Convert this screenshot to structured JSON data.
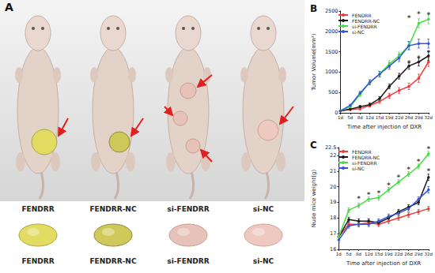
{
  "panel_a": {
    "label": "A",
    "captions": [
      "FENDRR",
      "FENDRR-NC",
      "si-FENDRR",
      "si-NC"
    ],
    "captions_bottom": [
      "FENDRR",
      "FENDRR-NC",
      "si-FENDRR",
      "si-NC"
    ]
  },
  "chart_data": [
    {
      "type": "line",
      "title": "B",
      "x_label": "Time after injection of DXR",
      "y_label": "Tumor Volume(mm³)",
      "categories": [
        "1d",
        "5d",
        "8d",
        "12d",
        "15d",
        "19d",
        "22d",
        "26d",
        "29d",
        "32d"
      ],
      "ylim": [
        0,
        2500
      ],
      "yticks": [
        0,
        500,
        1000,
        1500,
        2000,
        2500
      ],
      "legend": "upper left",
      "grid": false,
      "marker": "circle",
      "series": [
        {
          "name": "FENDRR",
          "color": "#ee3b3b",
          "values": [
            50,
            80,
            100,
            180,
            280,
            420,
            550,
            650,
            850,
            1250
          ],
          "errors": [
            10,
            20,
            30,
            40,
            50,
            60,
            70,
            80,
            100,
            110
          ]
        },
        {
          "name": "FENDRR-NC",
          "color": "#1a1a1a",
          "values": [
            50,
            90,
            150,
            200,
            350,
            650,
            900,
            1150,
            1250,
            1400
          ],
          "errors": [
            10,
            20,
            30,
            40,
            50,
            60,
            70,
            80,
            100,
            110
          ]
        },
        {
          "name": "si-FENDRR",
          "color": "#44dd44",
          "values": [
            50,
            150,
            450,
            750,
            950,
            1200,
            1400,
            1650,
            2200,
            2300
          ],
          "errors": [
            10,
            30,
            50,
            60,
            70,
            80,
            90,
            100,
            110,
            110
          ]
        },
        {
          "name": "si-NC",
          "color": "#3355dd",
          "values": [
            50,
            180,
            480,
            750,
            950,
            1150,
            1350,
            1650,
            1700,
            1700
          ],
          "errors": [
            10,
            30,
            50,
            60,
            70,
            80,
            90,
            100,
            110,
            110
          ]
        }
      ],
      "annotations": [
        {
          "text": "*",
          "x": "26d",
          "y": 2330
        },
        {
          "text": "*",
          "x": "29d",
          "y": 2420
        },
        {
          "text": "*",
          "x": "32d",
          "y": 2400
        },
        {
          "text": "*",
          "x": "26d",
          "y": 1230
        },
        {
          "text": "*",
          "x": "29d",
          "y": 1330
        },
        {
          "text": "*",
          "x": "32d",
          "y": 1480
        }
      ]
    },
    {
      "type": "line",
      "title": "C",
      "x_label": "Time after injection of DXR",
      "y_label": "Nude mice weight(g)",
      "categories": [
        "1d",
        "5d",
        "8d",
        "12d",
        "15d",
        "19d",
        "22d",
        "26d",
        "29d",
        "32d"
      ],
      "ylim": [
        16,
        22.5
      ],
      "yticks": [
        16,
        17,
        18,
        19,
        20,
        21,
        22
      ],
      "legend": "upper left",
      "grid": false,
      "marker": "circle",
      "series": [
        {
          "name": "FENDRR",
          "color": "#ee3b3b",
          "values": [
            16.8,
            17.6,
            17.6,
            17.7,
            17.6,
            17.8,
            18.0,
            18.2,
            18.4,
            18.6
          ],
          "errors": [
            0.15,
            0.15,
            0.15,
            0.15,
            0.15,
            0.15,
            0.15,
            0.15,
            0.15,
            0.15
          ]
        },
        {
          "name": "FENDRR-NC",
          "color": "#1a1a1a",
          "values": [
            16.8,
            17.9,
            17.8,
            17.8,
            17.7,
            18.0,
            18.4,
            18.7,
            19.0,
            20.6
          ],
          "errors": [
            0.15,
            0.15,
            0.15,
            0.15,
            0.15,
            0.15,
            0.15,
            0.15,
            0.15,
            0.2
          ]
        },
        {
          "name": "si-FENDRR",
          "color": "#44dd44",
          "values": [
            16.8,
            18.5,
            18.8,
            19.2,
            19.3,
            19.8,
            20.3,
            20.8,
            21.3,
            22.1
          ],
          "errors": [
            0.15,
            0.15,
            0.15,
            0.15,
            0.15,
            0.15,
            0.15,
            0.15,
            0.15,
            0.15
          ]
        },
        {
          "name": "si-NC",
          "color": "#3355dd",
          "values": [
            16.6,
            17.5,
            17.6,
            17.6,
            17.8,
            18.1,
            18.3,
            18.6,
            19.2,
            19.8
          ],
          "errors": [
            0.15,
            0.15,
            0.15,
            0.15,
            0.15,
            0.15,
            0.15,
            0.15,
            0.15,
            0.2
          ]
        }
      ],
      "annotations": [
        {
          "text": "*",
          "x": "8d",
          "y": 19.2
        },
        {
          "text": "*",
          "x": "12d",
          "y": 19.5
        },
        {
          "text": "*",
          "x": "15d",
          "y": 19.6
        },
        {
          "text": "*",
          "x": "19d",
          "y": 20.1
        },
        {
          "text": "*",
          "x": "22d",
          "y": 20.6
        },
        {
          "text": "*",
          "x": "26d",
          "y": 21.1
        },
        {
          "text": "*",
          "x": "29d",
          "y": 21.6
        },
        {
          "text": "*",
          "x": "32d",
          "y": 22.4
        },
        {
          "text": "*",
          "x": "32d",
          "y": 21.0
        }
      ]
    }
  ]
}
